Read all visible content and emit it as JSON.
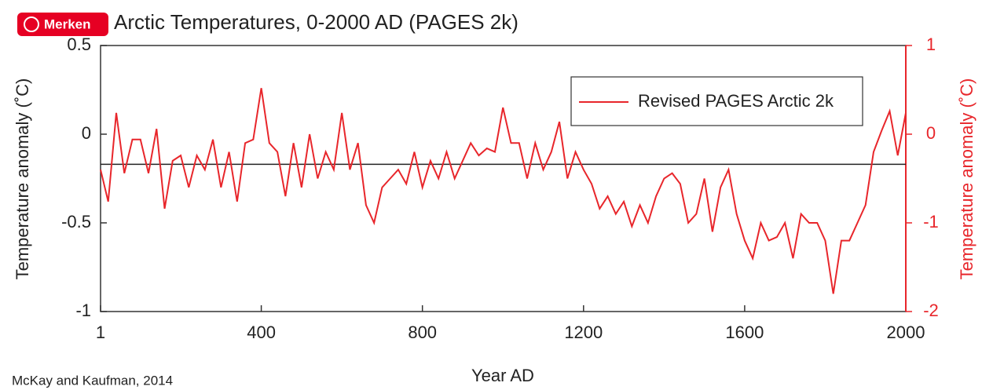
{
  "overlay": {
    "button": "Merken"
  },
  "chart_data": {
    "type": "line",
    "title": "Arctic Temperatures, 0-2000 AD (PAGES 2k)",
    "xlabel": "Year AD",
    "ylabel": "Temperature anomaly (˚C)",
    "y2label": "Temperature anomaly (˚C)",
    "source": "McKay and Kaufman, 2014",
    "x": [
      1,
      20,
      40,
      60,
      80,
      100,
      120,
      140,
      160,
      180,
      200,
      220,
      240,
      260,
      280,
      300,
      320,
      340,
      360,
      380,
      400,
      420,
      440,
      460,
      480,
      500,
      520,
      540,
      560,
      580,
      600,
      620,
      640,
      660,
      680,
      700,
      720,
      740,
      760,
      780,
      800,
      820,
      840,
      860,
      880,
      900,
      920,
      940,
      960,
      980,
      1000,
      1020,
      1040,
      1060,
      1080,
      1100,
      1120,
      1140,
      1160,
      1180,
      1200,
      1220,
      1240,
      1260,
      1280,
      1300,
      1320,
      1340,
      1360,
      1380,
      1400,
      1420,
      1440,
      1460,
      1480,
      1500,
      1520,
      1540,
      1560,
      1580,
      1600,
      1620,
      1640,
      1660,
      1680,
      1700,
      1720,
      1740,
      1760,
      1780,
      1800,
      1820,
      1840,
      1860,
      1880,
      1900,
      1920,
      1940,
      1960,
      1980,
      2000
    ],
    "series": [
      {
        "name": "Revised PAGES Arctic 2k",
        "color": "#e8262b",
        "values": [
          -0.2,
          -0.38,
          0.12,
          -0.22,
          -0.03,
          -0.03,
          -0.22,
          0.03,
          -0.42,
          -0.15,
          -0.12,
          -0.3,
          -0.12,
          -0.2,
          -0.03,
          -0.3,
          -0.1,
          -0.38,
          -0.05,
          -0.03,
          0.26,
          -0.05,
          -0.1,
          -0.35,
          -0.05,
          -0.3,
          0.0,
          -0.25,
          -0.1,
          -0.2,
          0.12,
          -0.2,
          -0.05,
          -0.4,
          -0.5,
          -0.3,
          -0.25,
          -0.2,
          -0.28,
          -0.1,
          -0.3,
          -0.15,
          -0.25,
          -0.1,
          -0.25,
          -0.15,
          -0.05,
          -0.12,
          -0.08,
          -0.1,
          0.15,
          -0.05,
          -0.05,
          -0.25,
          -0.05,
          -0.2,
          -0.1,
          0.07,
          -0.25,
          -0.1,
          -0.2,
          -0.28,
          -0.42,
          -0.35,
          -0.45,
          -0.38,
          -0.52,
          -0.4,
          -0.5,
          -0.35,
          -0.25,
          -0.22,
          -0.28,
          -0.5,
          -0.45,
          -0.25,
          -0.55,
          -0.3,
          -0.2,
          -0.45,
          -0.6,
          -0.7,
          -0.5,
          -0.6,
          -0.58,
          -0.5,
          -0.7,
          -0.45,
          -0.5,
          -0.5,
          -0.6,
          -0.9,
          -0.6,
          -0.6,
          -0.5,
          -0.4,
          -0.1,
          0.02,
          0.13,
          -0.12,
          0.12
        ]
      }
    ],
    "reference_line": -0.17,
    "xlim": [
      1,
      2000
    ],
    "xticks": [
      1,
      400,
      800,
      1200,
      1600,
      2000
    ],
    "ylim": [
      -1,
      0.5
    ],
    "yticks": [
      0.5,
      0,
      -0.5,
      -1
    ],
    "y2lim": [
      -2,
      1
    ],
    "y2ticks": [
      1,
      0,
      -1,
      -2
    ],
    "y2color": "#e8262b",
    "legend": "upper right"
  }
}
